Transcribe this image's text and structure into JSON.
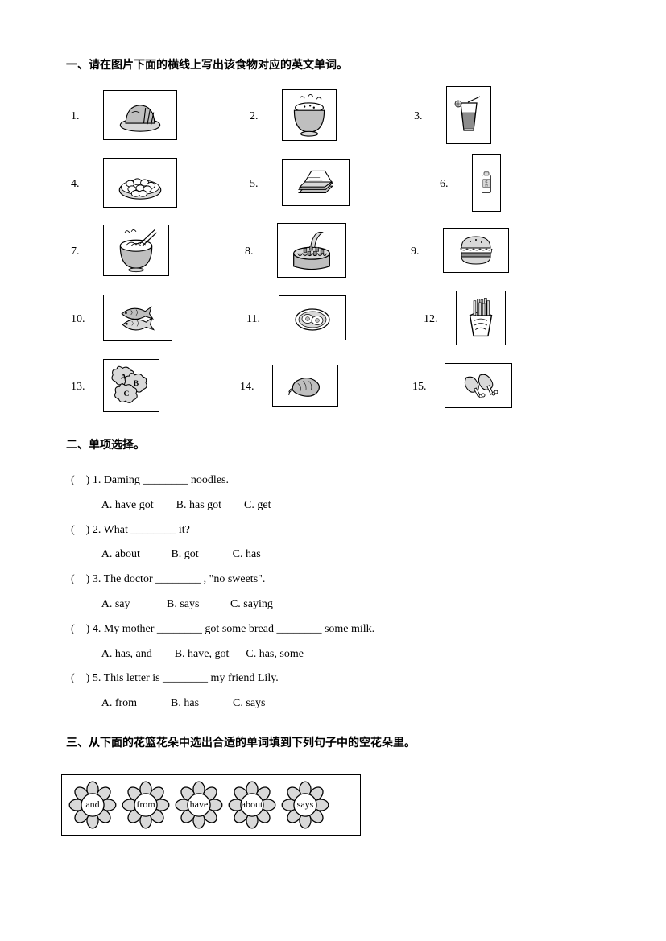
{
  "section_a": {
    "title": "一、请在图片下面的横线上写出该食物对应的英文单词。",
    "items": [
      {
        "n": "1.",
        "icon": "bread",
        "w": 92,
        "h": 62
      },
      {
        "n": "2.",
        "icon": "rice",
        "w": 68,
        "h": 64
      },
      {
        "n": "3.",
        "icon": "juice",
        "w": 56,
        "h": 72
      },
      {
        "n": "4.",
        "icon": "dumplings",
        "w": 92,
        "h": 62
      },
      {
        "n": "5.",
        "icon": "sandwiches",
        "w": 84,
        "h": 58
      },
      {
        "n": "6.",
        "icon": "milk",
        "w": 36,
        "h": 72
      },
      {
        "n": "7.",
        "icon": "noodles",
        "w": 82,
        "h": 64
      },
      {
        "n": "8.",
        "icon": "cake",
        "w": 86,
        "h": 68
      },
      {
        "n": "9.",
        "icon": "hamburger",
        "w": 82,
        "h": 56
      },
      {
        "n": "10.",
        "icon": "fish",
        "w": 86,
        "h": 58
      },
      {
        "n": "11.",
        "icon": "eggs",
        "w": 84,
        "h": 56
      },
      {
        "n": "12.",
        "icon": "chips",
        "w": 62,
        "h": 68
      },
      {
        "n": "13.",
        "icon": "biscuits",
        "w": 70,
        "h": 66
      },
      {
        "n": "14.",
        "icon": "sausage",
        "w": 82,
        "h": 52
      },
      {
        "n": "15.",
        "icon": "chicken",
        "w": 84,
        "h": 56
      }
    ],
    "row_layout": [
      {
        "items": [
          0,
          1,
          2
        ],
        "gaps": [
          0,
          90,
          96
        ]
      },
      {
        "items": [
          3,
          4,
          5
        ],
        "gaps": [
          0,
          90,
          112
        ]
      },
      {
        "items": [
          6,
          7,
          8
        ],
        "gaps": [
          0,
          94,
          80
        ]
      },
      {
        "items": [
          9,
          10,
          11
        ],
        "gaps": [
          0,
          92,
          96
        ]
      },
      {
        "items": [
          12,
          13,
          14
        ],
        "gaps": [
          0,
          100,
          92
        ]
      }
    ]
  },
  "section_b": {
    "title": "二、单项选择。",
    "questions": [
      "(    ) 1. Daming ________ noodles.",
      "           A. have got        B. has got        C. get",
      "(    ) 2. What ________ it?",
      "           A. about           B. got            C. has",
      "(    ) 3. The doctor ________ , \"no sweets\".",
      "           A. say             B. says           C. saying",
      "(    ) 4. My mother ________ got some bread ________ some milk.",
      "           A. has, and        B. have, got      C. has, some",
      "(    ) 5. This letter is ________ my friend Lily.",
      "           A. from            B. has            C. says"
    ]
  },
  "section_c": {
    "title": "三、从下面的花篮花朵中选出合适的单词填到下列句子中的空花朵里。",
    "flowers": [
      "and",
      "from",
      "have",
      "about",
      "says",
      "",
      ""
    ]
  },
  "colors": {
    "line": "#000",
    "fill_light": "#d9d9d9",
    "fill_mid": "#bfbfbf",
    "fill_dark": "#8c8c8c"
  }
}
